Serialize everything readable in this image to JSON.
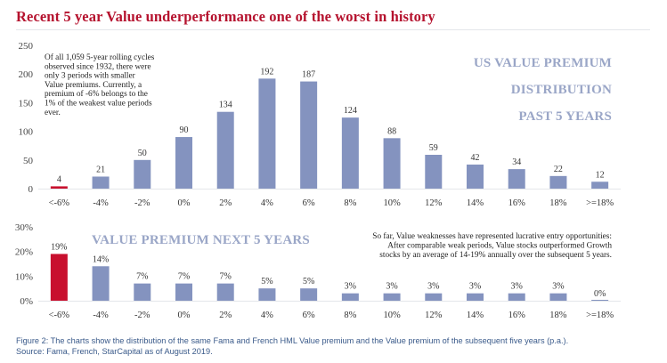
{
  "title": "Recent 5 year Value underperformance one of the worst in history",
  "colors": {
    "highlight": "#c8102e",
    "bar": "#8493bf",
    "title": "#b5122e",
    "grid": "#e4e6ea"
  },
  "chart_data": [
    {
      "type": "bar",
      "title": "US VALUE PREMIUM DISTRIBUTION PAST 5 YEARS",
      "title_lines": [
        "US VALUE PREMIUM",
        "DISTRIBUTION",
        "PAST 5 YEARS"
      ],
      "categories": [
        "<-6%",
        "-4%",
        "-2%",
        "0%",
        "2%",
        "4%",
        "6%",
        "8%",
        "10%",
        "12%",
        "14%",
        "16%",
        "18%",
        ">=18%"
      ],
      "values": [
        4,
        21,
        50,
        90,
        134,
        192,
        187,
        124,
        88,
        59,
        42,
        34,
        22,
        12
      ],
      "value_labels": [
        "4",
        "21",
        "50",
        "90",
        "134",
        "192",
        "187",
        "124",
        "88",
        "59",
        "42",
        "34",
        "22",
        "12"
      ],
      "highlight_index": 0,
      "ylim": [
        0,
        250
      ],
      "yticks": [
        0,
        50,
        100,
        150,
        200,
        250
      ],
      "ytick_labels": [
        "0",
        "50",
        "100",
        "150",
        "200",
        "250"
      ],
      "annotation_lines": [
        "Of all 1,059 5-year rolling cycles",
        "observed since 1932, there were",
        "only 3 periods with smaller",
        "Value premiums. Currently, a",
        "premium of -6% belongs to the",
        "1% of the weakest value periods",
        "ever."
      ]
    },
    {
      "type": "bar",
      "title": "VALUE PREMIUM NEXT 5 YEARS",
      "categories": [
        "<-6%",
        "-4%",
        "-2%",
        "0%",
        "2%",
        "4%",
        "6%",
        "8%",
        "10%",
        "12%",
        "14%",
        "16%",
        "18%",
        ">=18%"
      ],
      "values": [
        19,
        14,
        7,
        7,
        7,
        5,
        5,
        3,
        3,
        3,
        3,
        3,
        3,
        0
      ],
      "value_labels": [
        "19%",
        "14%",
        "7%",
        "7%",
        "7%",
        "5%",
        "5%",
        "3%",
        "3%",
        "3%",
        "3%",
        "3%",
        "3%",
        "0%"
      ],
      "highlight_index": 0,
      "ylim": [
        0,
        30
      ],
      "yticks": [
        0,
        10,
        20,
        30
      ],
      "ytick_labels": [
        "0%",
        "10%",
        "20%",
        "30%"
      ],
      "annotation_lines": [
        "So far, Value weaknesses have represented lucrative entry opportunities:",
        "After comparable weak periods, Value stocks outperformed Growth",
        "stocks by an average of 14-19% annually over the subsequent 5 years."
      ]
    }
  ],
  "caption": {
    "line1": "Figure 2: The charts show the distribution of the same Fama and French HML Value premium and the Value premium of the subsequent five years (p.a.).",
    "line2": "Source: Fama, French, StarCapital as of August 2019."
  }
}
